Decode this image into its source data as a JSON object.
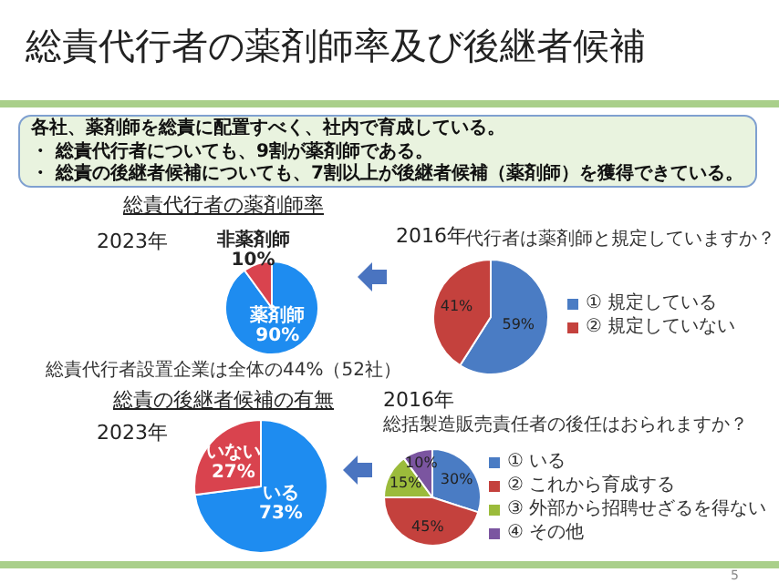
{
  "chart_data": [
    {
      "type": "other",
      "title": "総責代行者の薬剤師率及び後継者候補",
      "annotations": [
        "各社、薬剤師を総責に配置すべく、社内で育成している。",
        "・ 総責代行者についても、9割が薬剤師である。",
        "・ 総責の後継者候補についても、7割以上が後継者候補（薬剤師）を獲得できている。",
        "5"
      ]
    },
    {
      "type": "pie",
      "title": "総責代行者の薬剤師率",
      "subtitle": "2023年",
      "categories": [
        "薬剤師",
        "非薬剤師"
      ],
      "values": [
        90,
        10
      ],
      "colors": [
        "#1e8cf0",
        "#d9434e"
      ],
      "value_labels": [
        "90%",
        "10%"
      ],
      "annotations": [
        "総責代行者設置企業は全体の44%（52社）"
      ],
      "legend": false
    },
    {
      "type": "pie",
      "title": "代行者は薬剤師と規定していますか？",
      "subtitle": "2016年",
      "categories": [
        "① 規定している",
        "② 規定していない"
      ],
      "values": [
        59,
        41
      ],
      "colors": [
        "#4a7cc4",
        "#c4413d"
      ],
      "value_labels": [
        "59%",
        "41%"
      ],
      "legend": "right"
    },
    {
      "type": "pie",
      "title": "総責の後継者候補の有無",
      "subtitle": "2023年",
      "categories": [
        "いる",
        "いない"
      ],
      "values": [
        73,
        27
      ],
      "colors": [
        "#1e8cf0",
        "#d9434e"
      ],
      "value_labels": [
        "73%",
        "27%"
      ],
      "legend": false
    },
    {
      "type": "pie",
      "title": "総括製造販売責任者の後任はおられますか？",
      "subtitle": "2016年",
      "categories": [
        "① いる",
        "② これから育成する",
        "③ 外部から招聘せざるを得ない",
        "④ その他"
      ],
      "values": [
        30,
        45,
        15,
        10
      ],
      "colors": [
        "#4a7cc4",
        "#c4413d",
        "#9bbb3b",
        "#7b55a0"
      ],
      "value_labels": [
        "30%",
        "45%",
        "15%",
        "10%"
      ],
      "legend": "right"
    }
  ]
}
